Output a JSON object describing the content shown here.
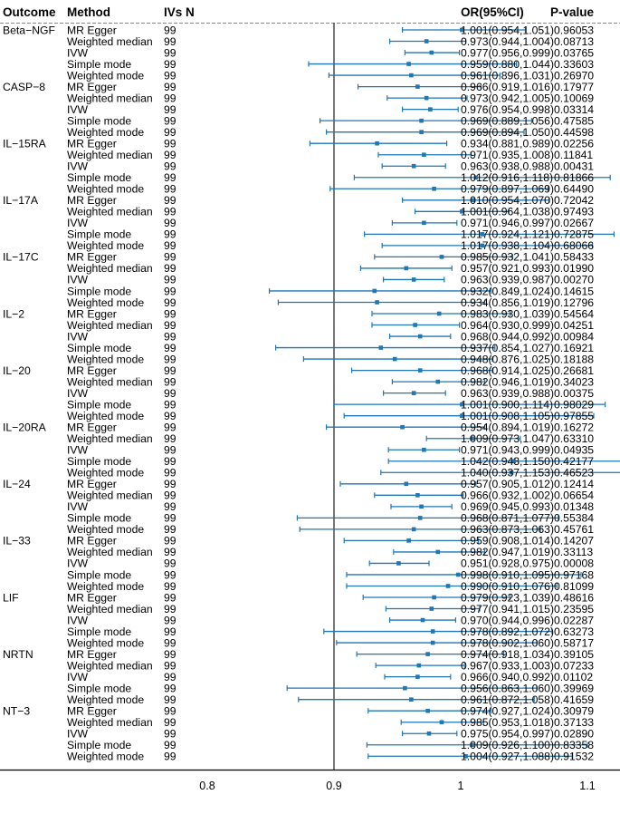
{
  "headers": {
    "outcome": "Outcome",
    "method": "Method",
    "ivs": "IVs N",
    "or": "OR(95%CI)",
    "p": "P-value"
  },
  "colors": {
    "marker": "#1f77b4",
    "ci_line": "#1f77b4",
    "reference_line": "#555555",
    "text": "#000000"
  },
  "chart_data": {
    "type": "forest",
    "xlim": [
      0.8,
      1.2
    ],
    "reference_value": 1,
    "ticks": [
      "0.8",
      "0.9",
      "1",
      "1.1",
      "1.2"
    ],
    "rows": [
      {
        "outcome": "Beta−NGF",
        "method": "MR Egger",
        "n": "99",
        "or": 1.001,
        "lo": 0.954,
        "hi": 1.051,
        "or_text": "1.001(0.954,1.051)",
        "p": "0.96053"
      },
      {
        "outcome": "",
        "method": "Weighted median",
        "n": "99",
        "or": 0.973,
        "lo": 0.944,
        "hi": 1.004,
        "or_text": "0.973(0.944,1.004)",
        "p": "0.08713"
      },
      {
        "outcome": "",
        "method": "IVW",
        "n": "99",
        "or": 0.977,
        "lo": 0.956,
        "hi": 0.999,
        "or_text": "0.977(0.956,0.999)",
        "p": "0.03765"
      },
      {
        "outcome": "",
        "method": "Simple mode",
        "n": "99",
        "or": 0.959,
        "lo": 0.88,
        "hi": 1.044,
        "or_text": "0.959(0.880,1.044)",
        "p": "0.33603"
      },
      {
        "outcome": "",
        "method": "Weighted mode",
        "n": "99",
        "or": 0.961,
        "lo": 0.896,
        "hi": 1.031,
        "or_text": "0.961(0.896,1.031)",
        "p": "0.26970"
      },
      {
        "outcome": "CASP−8",
        "method": "MR Egger",
        "n": "99",
        "or": 0.966,
        "lo": 0.919,
        "hi": 1.016,
        "or_text": "0.966(0.919,1.016)",
        "p": "0.17977"
      },
      {
        "outcome": "",
        "method": "Weighted median",
        "n": "99",
        "or": 0.973,
        "lo": 0.942,
        "hi": 1.005,
        "or_text": "0.973(0.942,1.005)",
        "p": "0.10069"
      },
      {
        "outcome": "",
        "method": "IVW",
        "n": "99",
        "or": 0.976,
        "lo": 0.954,
        "hi": 0.998,
        "or_text": "0.976(0.954,0.998)",
        "p": "0.03314"
      },
      {
        "outcome": "",
        "method": "Simple mode",
        "n": "99",
        "or": 0.969,
        "lo": 0.889,
        "hi": 1.056,
        "or_text": "0.969(0.889,1.056)",
        "p": "0.47585"
      },
      {
        "outcome": "",
        "method": "Weighted mode",
        "n": "99",
        "or": 0.969,
        "lo": 0.894,
        "hi": 1.05,
        "or_text": "0.969(0.894,1.050)",
        "p": "0.44598"
      },
      {
        "outcome": "IL−15RA",
        "method": "MR Egger",
        "n": "99",
        "or": 0.934,
        "lo": 0.881,
        "hi": 0.989,
        "or_text": "0.934(0.881,0.989)",
        "p": "0.02256"
      },
      {
        "outcome": "",
        "method": "Weighted median",
        "n": "99",
        "or": 0.971,
        "lo": 0.935,
        "hi": 1.008,
        "or_text": "0.971(0.935,1.008)",
        "p": "0.11841"
      },
      {
        "outcome": "",
        "method": "IVW",
        "n": "99",
        "or": 0.963,
        "lo": 0.938,
        "hi": 0.988,
        "or_text": "0.963(0.938,0.988)",
        "p": "0.00431"
      },
      {
        "outcome": "",
        "method": "Simple mode",
        "n": "99",
        "or": 1.012,
        "lo": 0.916,
        "hi": 1.118,
        "or_text": "1.012(0.916,1.118)",
        "p": "0.81866"
      },
      {
        "outcome": "",
        "method": "Weighted mode",
        "n": "99",
        "or": 0.979,
        "lo": 0.897,
        "hi": 1.069,
        "or_text": "0.979(0.897,1.069)",
        "p": "0.64490"
      },
      {
        "outcome": "IL−17A",
        "method": "MR Egger",
        "n": "99",
        "or": 1.01,
        "lo": 0.954,
        "hi": 1.07,
        "or_text": "1.010(0.954,1.070)",
        "p": "0.72042"
      },
      {
        "outcome": "",
        "method": "Weighted median",
        "n": "99",
        "or": 1.001,
        "lo": 0.964,
        "hi": 1.038,
        "or_text": "1.001(0.964,1.038)",
        "p": "0.97493"
      },
      {
        "outcome": "",
        "method": "IVW",
        "n": "99",
        "or": 0.971,
        "lo": 0.946,
        "hi": 0.997,
        "or_text": "0.971(0.946,0.997)",
        "p": "0.02667"
      },
      {
        "outcome": "",
        "method": "Simple mode",
        "n": "99",
        "or": 1.017,
        "lo": 0.924,
        "hi": 1.121,
        "or_text": "1.017(0.924,1.121)",
        "p": "0.72875"
      },
      {
        "outcome": "",
        "method": "Weighted mode",
        "n": "99",
        "or": 1.017,
        "lo": 0.938,
        "hi": 1.104,
        "or_text": "1.017(0.938,1.104)",
        "p": "0.68066"
      },
      {
        "outcome": "IL−17C",
        "method": "MR Egger",
        "n": "99",
        "or": 0.985,
        "lo": 0.932,
        "hi": 1.041,
        "or_text": "0.985(0.932,1.041)",
        "p": "0.58433"
      },
      {
        "outcome": "",
        "method": "Weighted median",
        "n": "99",
        "or": 0.957,
        "lo": 0.921,
        "hi": 0.993,
        "or_text": "0.957(0.921,0.993)",
        "p": "0.01990"
      },
      {
        "outcome": "",
        "method": "IVW",
        "n": "99",
        "or": 0.963,
        "lo": 0.939,
        "hi": 0.987,
        "or_text": "0.963(0.939,0.987)",
        "p": "0.00270"
      },
      {
        "outcome": "",
        "method": "Simple mode",
        "n": "99",
        "or": 0.932,
        "lo": 0.849,
        "hi": 1.024,
        "or_text": "0.932(0.849,1.024)",
        "p": "0.14615"
      },
      {
        "outcome": "",
        "method": "Weighted mode",
        "n": "99",
        "or": 0.934,
        "lo": 0.856,
        "hi": 1.019,
        "or_text": "0.934(0.856,1.019)",
        "p": "0.12796"
      },
      {
        "outcome": "IL−2",
        "method": "MR Egger",
        "n": "99",
        "or": 0.983,
        "lo": 0.93,
        "hi": 1.039,
        "or_text": "0.983(0.930,1.039)",
        "p": "0.54564"
      },
      {
        "outcome": "",
        "method": "Weighted median",
        "n": "99",
        "or": 0.964,
        "lo": 0.93,
        "hi": 0.999,
        "or_text": "0.964(0.930,0.999)",
        "p": "0.04251"
      },
      {
        "outcome": "",
        "method": "IVW",
        "n": "99",
        "or": 0.968,
        "lo": 0.944,
        "hi": 0.992,
        "or_text": "0.968(0.944,0.992)",
        "p": "0.00984"
      },
      {
        "outcome": "",
        "method": "Simple mode",
        "n": "99",
        "or": 0.937,
        "lo": 0.854,
        "hi": 1.027,
        "or_text": "0.937(0.854,1.027)",
        "p": "0.16921"
      },
      {
        "outcome": "",
        "method": "Weighted mode",
        "n": "99",
        "or": 0.948,
        "lo": 0.876,
        "hi": 1.025,
        "or_text": "0.948(0.876,1.025)",
        "p": "0.18188"
      },
      {
        "outcome": "IL−20",
        "method": "MR Egger",
        "n": "99",
        "or": 0.968,
        "lo": 0.914,
        "hi": 1.025,
        "or_text": "0.968(0.914,1.025)",
        "p": "0.26681"
      },
      {
        "outcome": "",
        "method": "Weighted median",
        "n": "99",
        "or": 0.982,
        "lo": 0.946,
        "hi": 1.019,
        "or_text": "0.982(0.946,1.019)",
        "p": "0.34023"
      },
      {
        "outcome": "",
        "method": "IVW",
        "n": "99",
        "or": 0.963,
        "lo": 0.939,
        "hi": 0.988,
        "or_text": "0.963(0.939,0.988)",
        "p": "0.00375"
      },
      {
        "outcome": "",
        "method": "Simple mode",
        "n": "99",
        "or": 1.001,
        "lo": 0.9,
        "hi": 1.114,
        "or_text": "1.001(0.900,1.114)",
        "p": "0.98029"
      },
      {
        "outcome": "",
        "method": "Weighted mode",
        "n": "99",
        "or": 1.001,
        "lo": 0.908,
        "hi": 1.105,
        "or_text": "1.001(0.908,1.105)",
        "p": "0.97855"
      },
      {
        "outcome": "IL−20RA",
        "method": "MR Egger",
        "n": "99",
        "or": 0.954,
        "lo": 0.894,
        "hi": 1.019,
        "or_text": "0.954(0.894,1.019)",
        "p": "0.16272"
      },
      {
        "outcome": "",
        "method": "Weighted median",
        "n": "99",
        "or": 1.009,
        "lo": 0.973,
        "hi": 1.047,
        "or_text": "1.009(0.973,1.047)",
        "p": "0.63310"
      },
      {
        "outcome": "",
        "method": "IVW",
        "n": "99",
        "or": 0.971,
        "lo": 0.943,
        "hi": 0.999,
        "or_text": "0.971(0.943,0.999)",
        "p": "0.04935"
      },
      {
        "outcome": "",
        "method": "Simple mode",
        "n": "99",
        "or": 1.042,
        "lo": 0.943,
        "hi": 1.15,
        "or_text": "1.042(0.943,1.150)",
        "p": "0.42177"
      },
      {
        "outcome": "",
        "method": "Weighted mode",
        "n": "99",
        "or": 1.04,
        "lo": 0.937,
        "hi": 1.153,
        "or_text": "1.040(0.937,1.153)",
        "p": "0.46523"
      },
      {
        "outcome": "IL−24",
        "method": "MR Egger",
        "n": "99",
        "or": 0.957,
        "lo": 0.905,
        "hi": 1.012,
        "or_text": "0.957(0.905,1.012)",
        "p": "0.12414"
      },
      {
        "outcome": "",
        "method": "Weighted median",
        "n": "99",
        "or": 0.966,
        "lo": 0.932,
        "hi": 1.002,
        "or_text": "0.966(0.932,1.002)",
        "p": "0.06654"
      },
      {
        "outcome": "",
        "method": "IVW",
        "n": "99",
        "or": 0.969,
        "lo": 0.945,
        "hi": 0.993,
        "or_text": "0.969(0.945,0.993)",
        "p": "0.01348"
      },
      {
        "outcome": "",
        "method": "Simple mode",
        "n": "99",
        "or": 0.968,
        "lo": 0.871,
        "hi": 1.077,
        "or_text": "0.968(0.871,1.077)",
        "p": "0.55384"
      },
      {
        "outcome": "",
        "method": "Weighted mode",
        "n": "99",
        "or": 0.963,
        "lo": 0.873,
        "hi": 1.063,
        "or_text": "0.963(0.873,1.063)",
        "p": "0.45761"
      },
      {
        "outcome": "IL−33",
        "method": "MR Egger",
        "n": "99",
        "or": 0.959,
        "lo": 0.908,
        "hi": 1.014,
        "or_text": "0.959(0.908,1.014)",
        "p": "0.14207"
      },
      {
        "outcome": "",
        "method": "Weighted median",
        "n": "99",
        "or": 0.982,
        "lo": 0.947,
        "hi": 1.019,
        "or_text": "0.982(0.947,1.019)",
        "p": "0.33113"
      },
      {
        "outcome": "",
        "method": "IVW",
        "n": "99",
        "or": 0.951,
        "lo": 0.928,
        "hi": 0.975,
        "or_text": "0.951(0.928,0.975)",
        "p": "0.00008"
      },
      {
        "outcome": "",
        "method": "Simple mode",
        "n": "99",
        "or": 0.998,
        "lo": 0.91,
        "hi": 1.095,
        "or_text": "0.998(0.910,1.095)",
        "p": "0.97168"
      },
      {
        "outcome": "",
        "method": "Weighted mode",
        "n": "99",
        "or": 0.99,
        "lo": 0.91,
        "hi": 1.076,
        "or_text": "0.990(0.910,1.076)",
        "p": "0.81099"
      },
      {
        "outcome": "LIF",
        "method": "MR Egger",
        "n": "99",
        "or": 0.979,
        "lo": 0.923,
        "hi": 1.039,
        "or_text": "0.979(0.923,1.039)",
        "p": "0.48616"
      },
      {
        "outcome": "",
        "method": "Weighted median",
        "n": "99",
        "or": 0.977,
        "lo": 0.941,
        "hi": 1.015,
        "or_text": "0.977(0.941,1.015)",
        "p": "0.23595"
      },
      {
        "outcome": "",
        "method": "IVW",
        "n": "99",
        "or": 0.97,
        "lo": 0.944,
        "hi": 0.996,
        "or_text": "0.970(0.944,0.996)",
        "p": "0.02287"
      },
      {
        "outcome": "",
        "method": "Simple mode",
        "n": "99",
        "or": 0.978,
        "lo": 0.892,
        "hi": 1.072,
        "or_text": "0.978(0.892,1.072)",
        "p": "0.63273"
      },
      {
        "outcome": "",
        "method": "Weighted mode",
        "n": "99",
        "or": 0.978,
        "lo": 0.902,
        "hi": 1.06,
        "or_text": "0.978(0.902,1.060)",
        "p": "0.58717"
      },
      {
        "outcome": "NRTN",
        "method": "MR Egger",
        "n": "99",
        "or": 0.974,
        "lo": 0.918,
        "hi": 1.034,
        "or_text": "0.974(0.918,1.034)",
        "p": "0.39105"
      },
      {
        "outcome": "",
        "method": "Weighted median",
        "n": "99",
        "or": 0.967,
        "lo": 0.933,
        "hi": 1.003,
        "or_text": "0.967(0.933,1.003)",
        "p": "0.07233"
      },
      {
        "outcome": "",
        "method": "IVW",
        "n": "99",
        "or": 0.966,
        "lo": 0.94,
        "hi": 0.992,
        "or_text": "0.966(0.940,0.992)",
        "p": "0.01102"
      },
      {
        "outcome": "",
        "method": "Simple mode",
        "n": "99",
        "or": 0.956,
        "lo": 0.863,
        "hi": 1.06,
        "or_text": "0.956(0.863,1.060)",
        "p": "0.39969"
      },
      {
        "outcome": "",
        "method": "Weighted mode",
        "n": "99",
        "or": 0.961,
        "lo": 0.872,
        "hi": 1.058,
        "or_text": "0.961(0.872,1.058)",
        "p": "0.41659"
      },
      {
        "outcome": "NT−3",
        "method": "MR Egger",
        "n": "99",
        "or": 0.974,
        "lo": 0.927,
        "hi": 1.024,
        "or_text": "0.974(0.927,1.024)",
        "p": "0.30979"
      },
      {
        "outcome": "",
        "method": "Weighted median",
        "n": "99",
        "or": 0.985,
        "lo": 0.953,
        "hi": 1.018,
        "or_text": "0.985(0.953,1.018)",
        "p": "0.37133"
      },
      {
        "outcome": "",
        "method": "IVW",
        "n": "99",
        "or": 0.975,
        "lo": 0.954,
        "hi": 0.997,
        "or_text": "0.975(0.954,0.997)",
        "p": "0.02890"
      },
      {
        "outcome": "",
        "method": "Simple mode",
        "n": "99",
        "or": 1.009,
        "lo": 0.926,
        "hi": 1.1,
        "or_text": "1.009(0.926,1.100)",
        "p": "0.83358"
      },
      {
        "outcome": "",
        "method": "Weighted mode",
        "n": "99",
        "or": 1.004,
        "lo": 0.927,
        "hi": 1.088,
        "or_text": "1.004(0.927,1.088)",
        "p": "0.91532"
      }
    ]
  }
}
